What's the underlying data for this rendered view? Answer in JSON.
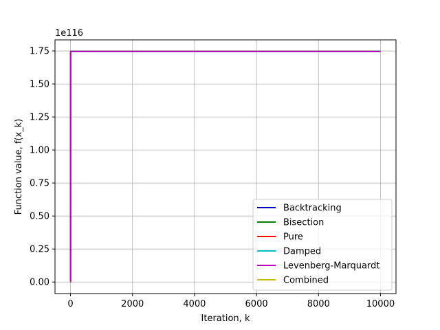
{
  "chart_data": {
    "type": "line",
    "title": "",
    "xlabel": "Iteration, k",
    "ylabel": "Function value, f(x_k)",
    "y_offset_text": "1e116",
    "y_scale_exponent": 116,
    "xlim": [
      -500,
      10500
    ],
    "ylim": [
      -0.0873,
      1.8337
    ],
    "x_ticks": [
      0,
      2000,
      4000,
      6000,
      8000,
      10000
    ],
    "x_tick_labels": [
      "0",
      "2000",
      "4000",
      "6000",
      "8000",
      "10000"
    ],
    "y_ticks": [
      0.0,
      0.25,
      0.5,
      0.75,
      1.0,
      1.25,
      1.5,
      1.75
    ],
    "y_tick_labels": [
      "0.00",
      "0.25",
      "0.50",
      "0.75",
      "1.00",
      "1.25",
      "1.50",
      "1.75"
    ],
    "grid": true,
    "legend_position": "lower-right",
    "series": [
      {
        "name": "Backtracking",
        "color": "#0000bf",
        "x": [
          0,
          1,
          2,
          10000
        ],
        "y": [
          0.0,
          0.0,
          1.746,
          1.746
        ]
      },
      {
        "name": "Bisection",
        "color": "#008000",
        "x": [
          0,
          1,
          2,
          10000
        ],
        "y": [
          0.0,
          0.0,
          1.746,
          1.746
        ]
      },
      {
        "name": "Pure",
        "color": "#ff0000",
        "x": [
          0,
          1,
          2,
          10000
        ],
        "y": [
          0.0,
          0.0,
          1.746,
          1.746
        ]
      },
      {
        "name": "Damped",
        "color": "#00bfbf",
        "x": [
          0,
          1,
          2,
          10000
        ],
        "y": [
          0.0,
          0.0,
          1.746,
          1.746
        ]
      },
      {
        "name": "Levenberg-Marquardt",
        "color": "#bf00bf",
        "x": [
          0,
          1,
          2,
          10000
        ],
        "y": [
          0.0,
          0.0,
          1.746,
          1.746
        ]
      },
      {
        "name": "Combined",
        "color": "#bfbf00",
        "x": [
          0,
          10
        ],
        "y": [
          0.0,
          0.0
        ]
      }
    ]
  }
}
